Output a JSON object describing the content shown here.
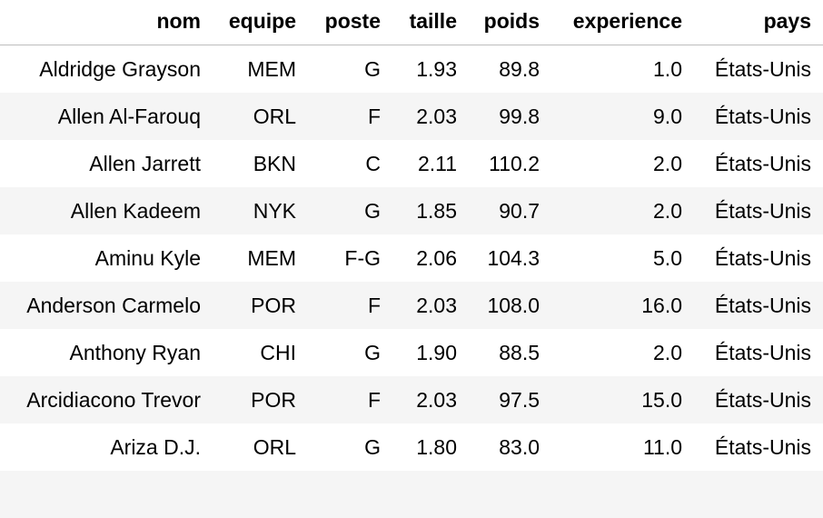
{
  "table": {
    "headers": [
      "nom",
      "equipe",
      "poste",
      "taille",
      "poids",
      "experience",
      "pays"
    ],
    "rows": [
      [
        "Aldridge Grayson",
        "MEM",
        "G",
        "1.93",
        "89.8",
        "1.0",
        "États-Unis"
      ],
      [
        "Allen Al-Farouq",
        "ORL",
        "F",
        "2.03",
        "99.8",
        "9.0",
        "États-Unis"
      ],
      [
        "Allen Jarrett",
        "BKN",
        "C",
        "2.11",
        "110.2",
        "2.0",
        "États-Unis"
      ],
      [
        "Allen Kadeem",
        "NYK",
        "G",
        "1.85",
        "90.7",
        "2.0",
        "États-Unis"
      ],
      [
        "Aminu Kyle",
        "MEM",
        "F-G",
        "2.06",
        "104.3",
        "5.0",
        "États-Unis"
      ],
      [
        "Anderson Carmelo",
        "POR",
        "F",
        "2.03",
        "108.0",
        "16.0",
        "États-Unis"
      ],
      [
        "Anthony Ryan",
        "CHI",
        "G",
        "1.90",
        "88.5",
        "2.0",
        "États-Unis"
      ],
      [
        "Arcidiacono Trevor",
        "POR",
        "F",
        "2.03",
        "97.5",
        "15.0",
        "États-Unis"
      ],
      [
        "Ariza D.J.",
        "ORL",
        "G",
        "1.80",
        "83.0",
        "11.0",
        "États-Unis"
      ]
    ]
  }
}
